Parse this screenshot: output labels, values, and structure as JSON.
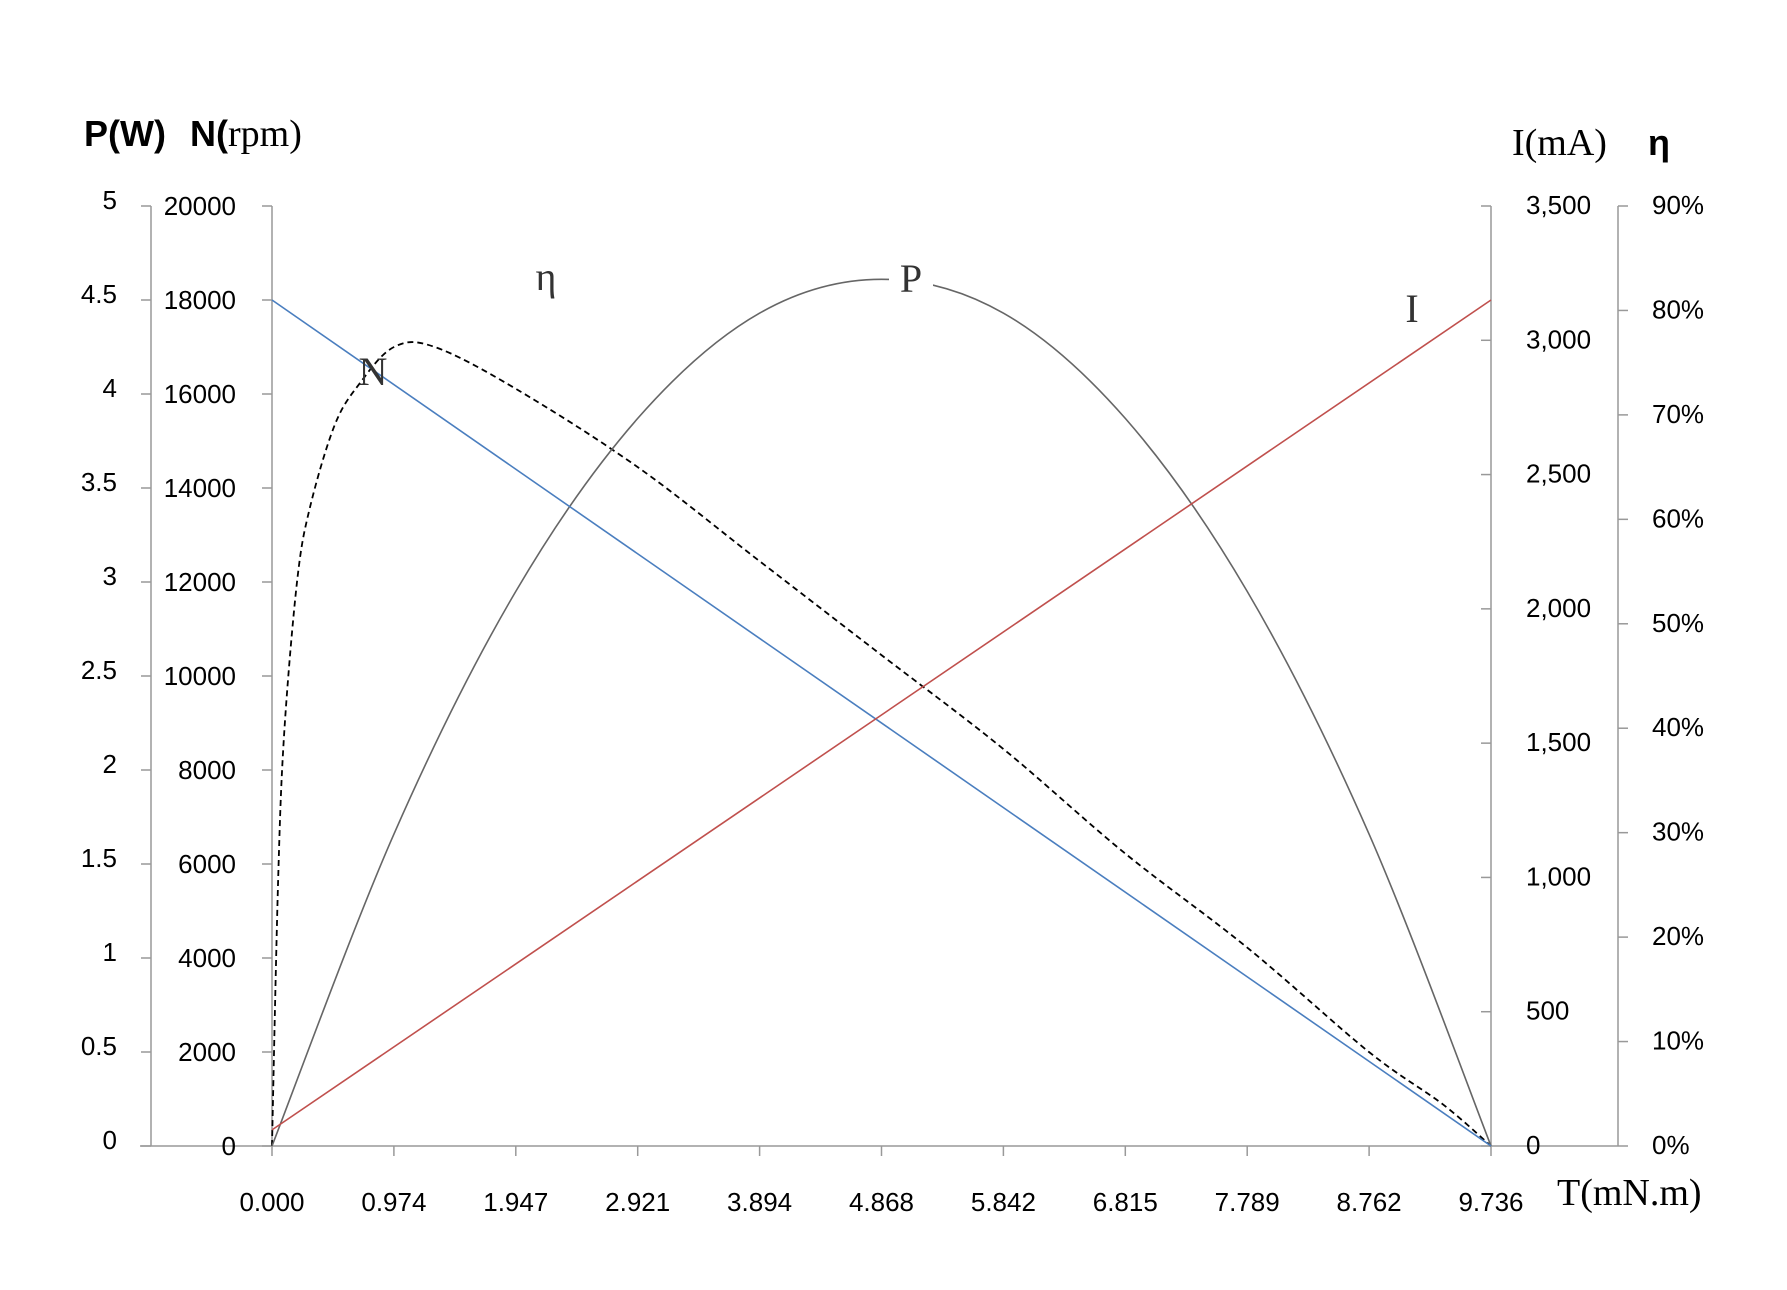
{
  "chart_data": {
    "type": "line",
    "axes": {
      "left_power": {
        "label": "P(W)",
        "range": [
          0,
          5
        ],
        "ticks": [
          "0",
          "0.5",
          "1",
          "1.5",
          "2",
          "2.5",
          "3",
          "3.5",
          "4",
          "4.5",
          "5"
        ]
      },
      "left_speed": {
        "label_bold": "N(",
        "label_unit": "rpm)",
        "range": [
          0,
          20000
        ],
        "ticks": [
          "0",
          "2000",
          "4000",
          "6000",
          "8000",
          "10000",
          "12000",
          "14000",
          "16000",
          "18000",
          "20000"
        ]
      },
      "right_current": {
        "label": "I(mA)",
        "range": [
          0,
          3500
        ],
        "ticks": [
          "0",
          "500",
          "1,000",
          "1,500",
          "2,000",
          "2,500",
          "3,000",
          "3,500"
        ]
      },
      "right_efficiency": {
        "label": "η",
        "range": [
          0,
          0.9
        ],
        "ticks": [
          "0%",
          "10%",
          "20%",
          "30%",
          "40%",
          "50%",
          "60%",
          "70%",
          "80%",
          "90%"
        ]
      },
      "x_torque": {
        "label": "T(mN.m)",
        "range": [
          0,
          9.736
        ],
        "ticks": [
          "0.000",
          "0.974",
          "1.947",
          "2.921",
          "3.894",
          "4.868",
          "5.842",
          "6.815",
          "7.789",
          "8.762",
          "9.736"
        ]
      }
    },
    "series": [
      {
        "name": "N",
        "axis": "left_speed",
        "color": "#4a7ebf",
        "style": "solid",
        "x": [
          0,
          9.736
        ],
        "y": [
          18000,
          0
        ]
      },
      {
        "name": "I",
        "axis": "right_current",
        "color": "#c0504d",
        "style": "solid",
        "x": [
          0,
          9.736
        ],
        "y": [
          60,
          3150
        ]
      },
      {
        "name": "P",
        "axis": "left_power",
        "color": "#666666",
        "style": "solid",
        "x": [
          0,
          0.974,
          1.947,
          2.921,
          3.894,
          4.868,
          5.842,
          6.815,
          7.789,
          8.762,
          9.736
        ],
        "y": [
          0,
          1.66,
          2.95,
          3.87,
          4.43,
          4.61,
          4.43,
          3.87,
          2.95,
          1.66,
          0
        ]
      },
      {
        "name": "η",
        "axis": "right_efficiency",
        "color": "#000000",
        "style": "dashed",
        "x": [
          0,
          0.05,
          0.1,
          0.2,
          0.3,
          0.5,
          0.7,
          0.974,
          1.3,
          1.947,
          2.921,
          3.894,
          4.868,
          5.842,
          6.815,
          7.789,
          8.762,
          9.35,
          9.736
        ],
        "y": [
          0,
          0.26,
          0.4,
          0.54,
          0.61,
          0.69,
          0.73,
          0.765,
          0.765,
          0.725,
          0.65,
          0.56,
          0.47,
          0.38,
          0.28,
          0.19,
          0.09,
          0.04,
          0
        ]
      }
    ],
    "curve_labels": [
      "η",
      "P",
      "N",
      "I"
    ],
    "grid": false,
    "legend": "none"
  }
}
